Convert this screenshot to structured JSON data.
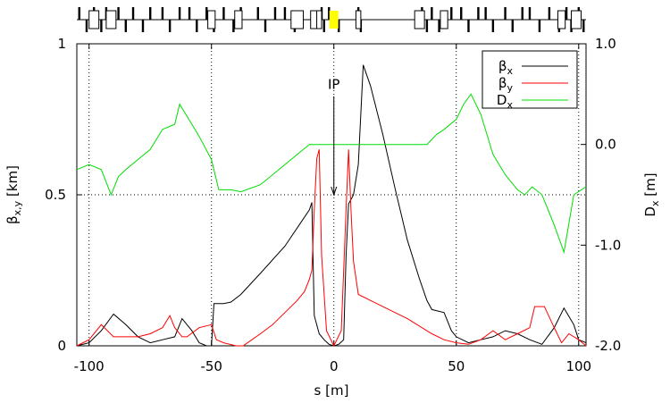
{
  "chart_data": {
    "type": "line",
    "xlabel": "s [m]",
    "ylabel_left": {
      "main": "β",
      "sub": "x,y",
      "unit": " [km]"
    },
    "ylabel_right": {
      "main": "D",
      "sub": "x",
      "unit": " [m]"
    },
    "xlim": [
      -105,
      103
    ],
    "ylim_left": [
      0,
      1
    ],
    "ylim_right": [
      -2.0,
      1.0
    ],
    "xticks": [
      {
        "value": -100,
        "label": "-100"
      },
      {
        "value": -50,
        "label": "-50"
      },
      {
        "value": 0,
        "label": "0"
      },
      {
        "value": 50,
        "label": "50"
      },
      {
        "value": 100,
        "label": "100"
      }
    ],
    "yticks_left": [
      {
        "value": 0,
        "label": "0"
      },
      {
        "value": 0.5,
        "label": "0.5"
      },
      {
        "value": 1,
        "label": "1"
      }
    ],
    "yticks_right": [
      {
        "value": 1.0,
        "label": "1.0"
      },
      {
        "value": 0.0,
        "label": "0.0"
      },
      {
        "value": -1.0,
        "label": "-1.0"
      },
      {
        "value": -2.0,
        "label": "-2.0"
      }
    ],
    "grid": "dotted",
    "legend_position": "top-right",
    "annotation": {
      "text": "IP",
      "x": 0,
      "y_text": 0.85,
      "arrow_to": 0.5
    },
    "series": [
      {
        "name": "β",
        "sub": "x",
        "axis": "left",
        "color": "#000000",
        "points": [
          [
            -105,
            0.0
          ],
          [
            -100,
            0.01
          ],
          [
            -95,
            0.05
          ],
          [
            -90,
            0.105
          ],
          [
            -85,
            0.07
          ],
          [
            -80,
            0.03
          ],
          [
            -75,
            0.01
          ],
          [
            -70,
            0.02
          ],
          [
            -65,
            0.03
          ],
          [
            -62,
            0.09
          ],
          [
            -58,
            0.05
          ],
          [
            -55,
            0.01
          ],
          [
            -52,
            0.0
          ],
          [
            -50,
            0.0
          ],
          [
            -49,
            0.14
          ],
          [
            -45,
            0.14
          ],
          [
            -42,
            0.145
          ],
          [
            -38,
            0.17
          ],
          [
            -30,
            0.24
          ],
          [
            -20,
            0.33
          ],
          [
            -15,
            0.39
          ],
          [
            -10,
            0.45
          ],
          [
            -9,
            0.475
          ],
          [
            -8,
            0.1
          ],
          [
            -6,
            0.04
          ],
          [
            -4,
            0.02
          ],
          [
            -2,
            0.005
          ],
          [
            0,
            0.0
          ],
          [
            2,
            0.005
          ],
          [
            4,
            0.02
          ],
          [
            5,
            0.3
          ],
          [
            6,
            0.47
          ],
          [
            8,
            0.5
          ],
          [
            10,
            0.6
          ],
          [
            12,
            0.93
          ],
          [
            15,
            0.86
          ],
          [
            20,
            0.7
          ],
          [
            25,
            0.52
          ],
          [
            30,
            0.35
          ],
          [
            35,
            0.22
          ],
          [
            38,
            0.15
          ],
          [
            40,
            0.12
          ],
          [
            45,
            0.11
          ],
          [
            48,
            0.05
          ],
          [
            50,
            0.03
          ],
          [
            55,
            0.01
          ],
          [
            60,
            0.02
          ],
          [
            65,
            0.03
          ],
          [
            70,
            0.05
          ],
          [
            75,
            0.04
          ],
          [
            80,
            0.02
          ],
          [
            85,
            0.005
          ],
          [
            90,
            0.06
          ],
          [
            94,
            0.125
          ],
          [
            98,
            0.07
          ],
          [
            100,
            0.02
          ],
          [
            103,
            0.01
          ]
        ]
      },
      {
        "name": "β",
        "sub": "y",
        "axis": "left",
        "color": "#ff0000",
        "points": [
          [
            -105,
            0.0
          ],
          [
            -100,
            0.02
          ],
          [
            -95,
            0.07
          ],
          [
            -90,
            0.03
          ],
          [
            -85,
            0.03
          ],
          [
            -80,
            0.03
          ],
          [
            -75,
            0.04
          ],
          [
            -70,
            0.06
          ],
          [
            -67,
            0.1
          ],
          [
            -65,
            0.06
          ],
          [
            -62,
            0.03
          ],
          [
            -60,
            0.03
          ],
          [
            -55,
            0.06
          ],
          [
            -50,
            0.07
          ],
          [
            -48,
            0.02
          ],
          [
            -45,
            0.01
          ],
          [
            -40,
            0.0
          ],
          [
            -37,
            0.0
          ],
          [
            -30,
            0.04
          ],
          [
            -25,
            0.07
          ],
          [
            -20,
            0.11
          ],
          [
            -15,
            0.15
          ],
          [
            -12,
            0.18
          ],
          [
            -10,
            0.22
          ],
          [
            -9,
            0.25
          ],
          [
            -8,
            0.45
          ],
          [
            -7,
            0.62
          ],
          [
            -6,
            0.65
          ],
          [
            -5,
            0.3
          ],
          [
            -3,
            0.05
          ],
          [
            0,
            0.0
          ],
          [
            3,
            0.05
          ],
          [
            5,
            0.45
          ],
          [
            6,
            0.65
          ],
          [
            7,
            0.45
          ],
          [
            8,
            0.28
          ],
          [
            10,
            0.17
          ],
          [
            15,
            0.15
          ],
          [
            20,
            0.13
          ],
          [
            30,
            0.09
          ],
          [
            40,
            0.04
          ],
          [
            45,
            0.02
          ],
          [
            50,
            0.01
          ],
          [
            55,
            0.005
          ],
          [
            60,
            0.02
          ],
          [
            65,
            0.05
          ],
          [
            70,
            0.02
          ],
          [
            75,
            0.04
          ],
          [
            80,
            0.06
          ],
          [
            82,
            0.13
          ],
          [
            86,
            0.13
          ],
          [
            90,
            0.06
          ],
          [
            93,
            0.01
          ],
          [
            96,
            0.04
          ],
          [
            100,
            0.02
          ],
          [
            103,
            0.0
          ]
        ]
      },
      {
        "name": "D",
        "sub": "x",
        "axis": "right",
        "color": "#00dd00",
        "points": [
          [
            -105,
            -0.25
          ],
          [
            -100,
            -0.2
          ],
          [
            -95,
            -0.25
          ],
          [
            -91,
            -0.5
          ],
          [
            -88,
            -0.32
          ],
          [
            -85,
            -0.25
          ],
          [
            -75,
            -0.05
          ],
          [
            -70,
            0.15
          ],
          [
            -65,
            0.2
          ],
          [
            -63,
            0.4
          ],
          [
            -58,
            0.2
          ],
          [
            -55,
            0.08
          ],
          [
            -50,
            -0.15
          ],
          [
            -47,
            -0.45
          ],
          [
            -42,
            -0.45
          ],
          [
            -38,
            -0.47
          ],
          [
            -30,
            -0.4
          ],
          [
            -20,
            -0.2
          ],
          [
            -15,
            -0.1
          ],
          [
            -10,
            0.0
          ],
          [
            -5,
            0.0
          ],
          [
            0,
            0.0
          ],
          [
            5,
            0.0
          ],
          [
            10,
            0.0
          ],
          [
            20,
            0.0
          ],
          [
            30,
            0.0
          ],
          [
            35,
            0.0
          ],
          [
            38,
            0.0
          ],
          [
            42,
            0.1
          ],
          [
            45,
            0.15
          ],
          [
            50,
            0.25
          ],
          [
            53,
            0.4
          ],
          [
            56,
            0.5
          ],
          [
            58,
            0.4
          ],
          [
            60,
            0.3
          ],
          [
            65,
            -0.1
          ],
          [
            70,
            -0.3
          ],
          [
            75,
            -0.45
          ],
          [
            78,
            -0.5
          ],
          [
            81,
            -0.42
          ],
          [
            85,
            -0.5
          ],
          [
            90,
            -0.8
          ],
          [
            94,
            -1.07
          ],
          [
            98,
            -0.5
          ],
          [
            103,
            -0.42
          ]
        ]
      }
    ],
    "lattice": {
      "center_marker_color": "#ffff00"
    }
  }
}
